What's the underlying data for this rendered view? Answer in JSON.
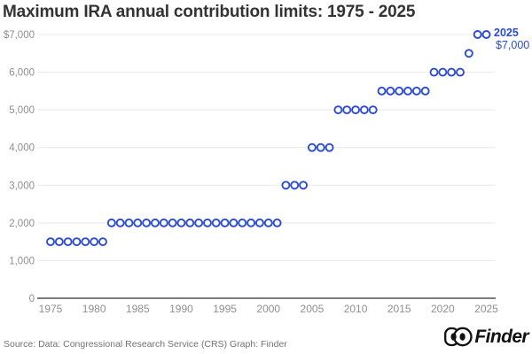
{
  "title": "Maximum IRA annual contribution limits: 1975 - 2025",
  "annotation": {
    "year_label": "2025",
    "value_label": "$7,000"
  },
  "footer": {
    "source": "Source: Data: Congressional Research Service (CRS) Graph: Finder",
    "brand": "Finder"
  },
  "colors": {
    "point": "#2b4bd3",
    "annotation": "#2b4bd3",
    "grid": "#e8e8e8",
    "axis": "#7d7d7d",
    "tick": "#8f8f8f",
    "title": "#333333",
    "footer": "#737373",
    "logo": "#111111"
  },
  "chart_data": {
    "type": "scatter",
    "title": "Maximum IRA annual contribution limits: 1975 - 2025",
    "marker": "open-circle",
    "grid": true,
    "ylim": [
      0,
      7000
    ],
    "xticks": [
      1975,
      1980,
      1985,
      1990,
      1995,
      2000,
      2005,
      2010,
      2015,
      2020,
      2025
    ],
    "yticks": [
      {
        "value": 0,
        "label": "0"
      },
      {
        "value": 1000,
        "label": "1,000"
      },
      {
        "value": 2000,
        "label": "2,000"
      },
      {
        "value": 3000,
        "label": "3,000"
      },
      {
        "value": 4000,
        "label": "4,000"
      },
      {
        "value": 5000,
        "label": "5,000"
      },
      {
        "value": 6000,
        "label": "6,000"
      },
      {
        "value": 7000,
        "label": "$7,000"
      }
    ],
    "x": [
      1975,
      1976,
      1977,
      1978,
      1979,
      1980,
      1981,
      1982,
      1983,
      1984,
      1985,
      1986,
      1987,
      1988,
      1989,
      1990,
      1991,
      1992,
      1993,
      1994,
      1995,
      1996,
      1997,
      1998,
      1999,
      2000,
      2001,
      2002,
      2003,
      2004,
      2005,
      2006,
      2007,
      2008,
      2009,
      2010,
      2011,
      2012,
      2013,
      2014,
      2015,
      2016,
      2017,
      2018,
      2019,
      2020,
      2021,
      2022,
      2023,
      2024,
      2025
    ],
    "y": [
      1500,
      1500,
      1500,
      1500,
      1500,
      1500,
      1500,
      2000,
      2000,
      2000,
      2000,
      2000,
      2000,
      2000,
      2000,
      2000,
      2000,
      2000,
      2000,
      2000,
      2000,
      2000,
      2000,
      2000,
      2000,
      2000,
      2000,
      3000,
      3000,
      3000,
      4000,
      4000,
      4000,
      5000,
      5000,
      5000,
      5000,
      5000,
      5500,
      5500,
      5500,
      5500,
      5500,
      5500,
      6000,
      6000,
      6000,
      6000,
      6500,
      7000,
      7000
    ],
    "annotation": {
      "x": 2025,
      "y": 7000,
      "lines": [
        "2025",
        "$7,000"
      ]
    }
  }
}
